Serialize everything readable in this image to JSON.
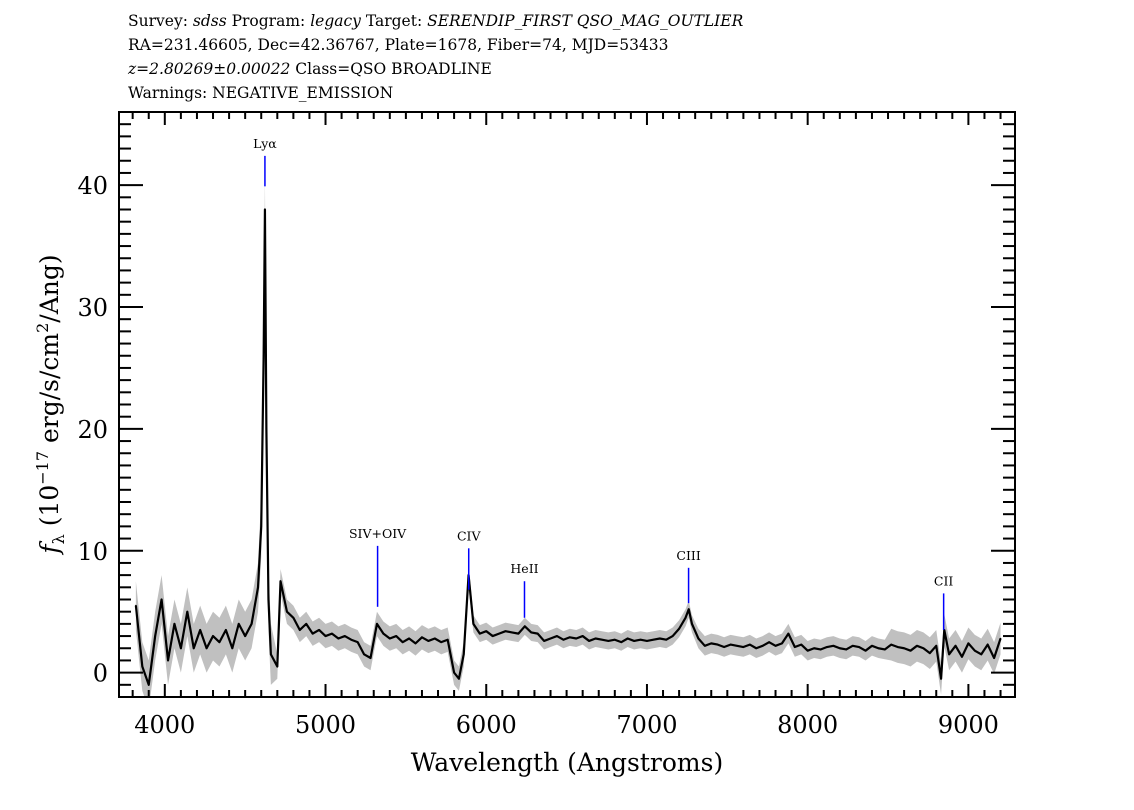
{
  "header": {
    "line1": {
      "survey_label": "Survey: ",
      "survey": "sdss",
      "program_label": " Program: ",
      "program": "legacy",
      "target_label": " Target: ",
      "target": "SERENDIP_FIRST QSO_MAG_OUTLIER"
    },
    "line2": "RA=231.46605, Dec=42.36767, Plate=1678, Fiber=74, MJD=53433",
    "line3": {
      "z": "z=2.80269±0.00022",
      "class": " Class=QSO BROADLINE"
    },
    "line4": "Warnings: NEGATIVE_EMISSION"
  },
  "chart_data": {
    "type": "line",
    "xlabel": "Wavelength (Angstroms)",
    "ylabel": {
      "f": "f",
      "sub": "λ",
      "pre": " (10",
      "exp": "−17",
      "mid": " erg/s/cm",
      "exp2": "2",
      "post": "/Ang)"
    },
    "xlim": [
      3715,
      9290
    ],
    "ylim": [
      -2,
      46
    ],
    "xticks": [
      4000,
      5000,
      6000,
      7000,
      8000,
      9000
    ],
    "xtick_labels": [
      "4000",
      "5000",
      "6000",
      "7000",
      "8000",
      "9000"
    ],
    "yticks": [
      0,
      10,
      20,
      30,
      40
    ],
    "ytick_labels": [
      "0",
      "10",
      "20",
      "30",
      "40"
    ],
    "grid": false,
    "colors": {
      "flux": "#000000",
      "error_band": "#c0c0c0",
      "line_marker": "#0000ff"
    },
    "x": [
      3820,
      3860,
      3900,
      3940,
      3980,
      4020,
      4060,
      4100,
      4140,
      4180,
      4220,
      4260,
      4300,
      4340,
      4380,
      4420,
      4460,
      4500,
      4540,
      4580,
      4600,
      4615,
      4623,
      4632,
      4645,
      4660,
      4700,
      4720,
      4760,
      4800,
      4840,
      4880,
      4920,
      4960,
      5000,
      5040,
      5080,
      5120,
      5160,
      5200,
      5240,
      5280,
      5320,
      5360,
      5400,
      5440,
      5480,
      5520,
      5560,
      5600,
      5640,
      5680,
      5720,
      5760,
      5800,
      5830,
      5860,
      5890,
      5920,
      5960,
      6000,
      6040,
      6080,
      6120,
      6160,
      6200,
      6240,
      6280,
      6320,
      6360,
      6400,
      6440,
      6480,
      6520,
      6560,
      6600,
      6640,
      6680,
      6720,
      6760,
      6800,
      6840,
      6880,
      6920,
      6960,
      7000,
      7040,
      7080,
      7120,
      7160,
      7200,
      7240,
      7260,
      7280,
      7320,
      7360,
      7400,
      7440,
      7480,
      7520,
      7560,
      7600,
      7640,
      7680,
      7720,
      7760,
      7800,
      7840,
      7880,
      7920,
      7960,
      8000,
      8040,
      8080,
      8120,
      8160,
      8200,
      8240,
      8280,
      8320,
      8360,
      8400,
      8440,
      8480,
      8520,
      8560,
      8600,
      8640,
      8680,
      8720,
      8760,
      8800,
      8830,
      8850,
      8880,
      8920,
      8960,
      9000,
      9040,
      9080,
      9120,
      9160,
      9200
    ],
    "flux": [
      5.5,
      0.5,
      -1.0,
      3.0,
      6.0,
      1.0,
      4.0,
      2.0,
      5.0,
      2.0,
      3.5,
      2.0,
      3.0,
      2.5,
      3.5,
      2.0,
      4.0,
      3.0,
      4.0,
      7.0,
      12.0,
      26.0,
      38.0,
      20.0,
      6.0,
      1.5,
      0.5,
      7.5,
      5.0,
      4.5,
      3.5,
      4.0,
      3.2,
      3.5,
      3.0,
      3.2,
      2.8,
      3.0,
      2.7,
      2.5,
      1.5,
      1.2,
      4.0,
      3.2,
      2.8,
      3.0,
      2.5,
      2.8,
      2.4,
      2.9,
      2.6,
      2.8,
      2.5,
      2.7,
      0.0,
      -0.5,
      1.5,
      8.0,
      4.0,
      3.2,
      3.4,
      3.0,
      3.2,
      3.4,
      3.3,
      3.2,
      3.8,
      3.3,
      3.2,
      2.6,
      2.8,
      3.0,
      2.7,
      2.9,
      2.8,
      3.0,
      2.6,
      2.8,
      2.7,
      2.6,
      2.7,
      2.5,
      2.8,
      2.6,
      2.7,
      2.6,
      2.7,
      2.8,
      2.7,
      3.0,
      3.6,
      4.5,
      5.2,
      4.0,
      2.8,
      2.2,
      2.4,
      2.3,
      2.1,
      2.3,
      2.2,
      2.1,
      2.3,
      2.0,
      2.2,
      2.5,
      2.2,
      2.4,
      3.2,
      2.1,
      2.3,
      1.8,
      2.0,
      1.9,
      2.1,
      2.2,
      2.0,
      1.9,
      2.2,
      2.1,
      1.8,
      2.2,
      2.0,
      1.9,
      2.3,
      2.1,
      2.0,
      1.8,
      2.2,
      2.0,
      1.6,
      2.2,
      -0.5,
      3.5,
      1.5,
      2.2,
      1.3,
      2.4,
      1.8,
      1.5,
      2.3,
      1.2,
      2.8
    ],
    "error_by_range": [
      {
        "from": 3800,
        "to": 4600,
        "sigma": 2.0
      },
      {
        "from": 4600,
        "to": 4700,
        "sigma": 2.5
      },
      {
        "from": 4700,
        "to": 5900,
        "sigma": 1.0
      },
      {
        "from": 5900,
        "to": 7300,
        "sigma": 0.7
      },
      {
        "from": 7300,
        "to": 8500,
        "sigma": 0.8
      },
      {
        "from": 8500,
        "to": 9300,
        "sigma": 1.3
      }
    ],
    "lines": [
      {
        "label": "Lyα",
        "wave": 4623,
        "top": 42.4,
        "bottom": 39.9
      },
      {
        "label": "SIV+OIV",
        "wave": 5324,
        "top": 10.4,
        "bottom": 5.4
      },
      {
        "label": "CIV",
        "wave": 5891,
        "top": 10.2,
        "bottom": 6.8
      },
      {
        "label": "HeII",
        "wave": 6238,
        "top": 7.5,
        "bottom": 4.5
      },
      {
        "label": "CIII",
        "wave": 7259,
        "top": 8.6,
        "bottom": 5.7
      },
      {
        "label": "CII",
        "wave": 8846,
        "top": 6.5,
        "bottom": 3.5
      }
    ]
  }
}
